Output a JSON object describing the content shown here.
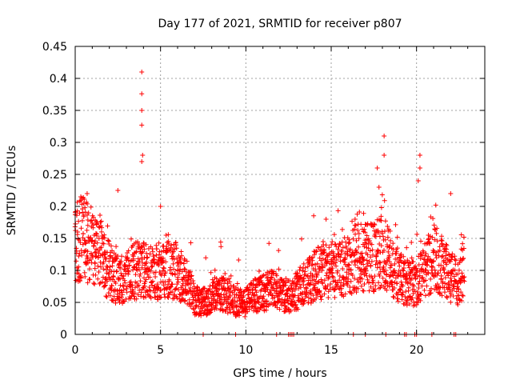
{
  "chart_data": {
    "type": "scatter",
    "title": "Day 177 of 2021, SRMTID for receiver p807",
    "xlabel": "GPS time / hours",
    "ylabel": "SRMTID / TECUs",
    "xlim": [
      0,
      24
    ],
    "ylim": [
      0,
      0.45
    ],
    "xticks": [
      0,
      5,
      10,
      15,
      20
    ],
    "yticks": [
      0,
      0.05,
      0.1,
      0.15,
      0.2,
      0.25,
      0.3,
      0.35,
      0.4,
      0.45
    ],
    "x_tick_labels": [
      "0",
      "5",
      "10",
      "15",
      "20"
    ],
    "y_tick_labels": [
      "0",
      "0.05",
      "0.1",
      "0.15",
      "0.2",
      "0.25",
      "0.3",
      "0.35",
      "0.4",
      "0.45"
    ],
    "grid": true,
    "marker": "+",
    "marker_color": "#ff0000",
    "series": [
      {
        "name": "SRMTID",
        "color": "#ff0000",
        "profile": [
          [
            0.0,
            0.15
          ],
          [
            0.5,
            0.15
          ],
          [
            1.0,
            0.13
          ],
          [
            1.5,
            0.12
          ],
          [
            2.0,
            0.1
          ],
          [
            2.5,
            0.085
          ],
          [
            3.0,
            0.09
          ],
          [
            3.5,
            0.1
          ],
          [
            4.0,
            0.1
          ],
          [
            4.5,
            0.095
          ],
          [
            5.0,
            0.1
          ],
          [
            5.5,
            0.1
          ],
          [
            6.0,
            0.1
          ],
          [
            6.5,
            0.08
          ],
          [
            7.0,
            0.055
          ],
          [
            7.5,
            0.05
          ],
          [
            8.0,
            0.06
          ],
          [
            8.5,
            0.065
          ],
          [
            9.0,
            0.06
          ],
          [
            9.5,
            0.05
          ],
          [
            10.0,
            0.05
          ],
          [
            10.5,
            0.06
          ],
          [
            11.0,
            0.065
          ],
          [
            11.5,
            0.07
          ],
          [
            12.0,
            0.065
          ],
          [
            12.5,
            0.06
          ],
          [
            13.0,
            0.07
          ],
          [
            13.5,
            0.08
          ],
          [
            14.0,
            0.09
          ],
          [
            14.5,
            0.1
          ],
          [
            15.0,
            0.1
          ],
          [
            15.5,
            0.1
          ],
          [
            16.0,
            0.11
          ],
          [
            16.5,
            0.12
          ],
          [
            17.0,
            0.12
          ],
          [
            17.5,
            0.12
          ],
          [
            18.0,
            0.13
          ],
          [
            18.5,
            0.11
          ],
          [
            19.0,
            0.09
          ],
          [
            19.5,
            0.08
          ],
          [
            20.0,
            0.08
          ],
          [
            20.5,
            0.1
          ],
          [
            21.0,
            0.12
          ],
          [
            21.5,
            0.11
          ],
          [
            22.0,
            0.09
          ],
          [
            22.5,
            0.08
          ],
          [
            22.8,
            0.11
          ]
        ],
        "spikes": [
          [
            3.9,
            0.41
          ],
          [
            3.9,
            0.376
          ],
          [
            3.9,
            0.35
          ],
          [
            3.9,
            0.327
          ],
          [
            3.95,
            0.28
          ],
          [
            3.9,
            0.27
          ],
          [
            18.1,
            0.31
          ],
          [
            18.1,
            0.28
          ],
          [
            17.7,
            0.26
          ],
          [
            17.8,
            0.23
          ],
          [
            20.2,
            0.28
          ],
          [
            20.2,
            0.26
          ],
          [
            20.1,
            0.24
          ],
          [
            22.0,
            0.22
          ],
          [
            0.7,
            0.22
          ],
          [
            2.5,
            0.225
          ],
          [
            5.0,
            0.2
          ],
          [
            14.7,
            0.18
          ],
          [
            16.4,
            0.18
          ]
        ],
        "zero_points": [
          7.5,
          9.4,
          11.8,
          12.5,
          12.6,
          12.7,
          12.8,
          16.3,
          17.0,
          18.2,
          19.3,
          19.4,
          19.9,
          20.0,
          20.9,
          22.2,
          22.3
        ]
      }
    ]
  }
}
